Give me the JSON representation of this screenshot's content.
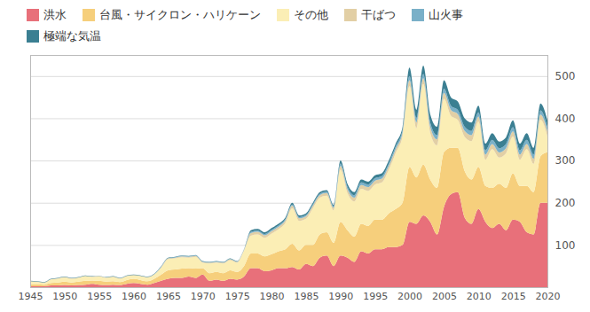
{
  "chart_data": {
    "type": "area",
    "stacked": true,
    "grid": true,
    "legend": "top-left",
    "x": [
      1945,
      1946,
      1947,
      1948,
      1949,
      1950,
      1951,
      1952,
      1953,
      1954,
      1955,
      1956,
      1957,
      1958,
      1959,
      1960,
      1961,
      1962,
      1963,
      1964,
      1965,
      1966,
      1967,
      1968,
      1969,
      1970,
      1971,
      1972,
      1973,
      1974,
      1975,
      1976,
      1977,
      1978,
      1979,
      1980,
      1981,
      1982,
      1983,
      1984,
      1985,
      1986,
      1987,
      1988,
      1989,
      1990,
      1991,
      1992,
      1993,
      1994,
      1995,
      1996,
      1997,
      1998,
      1999,
      2000,
      2001,
      2002,
      2003,
      2004,
      2005,
      2006,
      2007,
      2008,
      2009,
      2010,
      2011,
      2012,
      2013,
      2014,
      2015,
      2016,
      2017,
      2018,
      2019,
      2020
    ],
    "xlim": [
      1945,
      2020
    ],
    "xticks": [
      1945,
      1950,
      1955,
      1960,
      1965,
      1970,
      1975,
      1980,
      1985,
      1990,
      1995,
      2000,
      2005,
      2010,
      2015,
      2020
    ],
    "ylim": [
      0,
      550
    ],
    "yticks": [
      100,
      200,
      300,
      400,
      500
    ],
    "series": [
      {
        "name": "洪水",
        "color": "#e8707a",
        "values": [
          2,
          2,
          2,
          4,
          4,
          5,
          4,
          5,
          6,
          8,
          6,
          5,
          6,
          5,
          8,
          10,
          8,
          6,
          10,
          15,
          20,
          22,
          22,
          25,
          22,
          30,
          15,
          18,
          15,
          20,
          18,
          25,
          45,
          45,
          38,
          40,
          45,
          45,
          48,
          42,
          55,
          50,
          70,
          75,
          50,
          75,
          70,
          60,
          85,
          80,
          90,
          90,
          95,
          95,
          100,
          155,
          150,
          170,
          155,
          125,
          190,
          220,
          225,
          165,
          150,
          185,
          155,
          140,
          150,
          135,
          160,
          155,
          130,
          125,
          200,
          200
        ]
      },
      {
        "name": "台風・サイクロン・ハリケーン",
        "color": "#f6cf7c",
        "values": [
          5,
          5,
          4,
          6,
          7,
          8,
          7,
          8,
          9,
          8,
          9,
          8,
          8,
          7,
          9,
          10,
          9,
          8,
          10,
          15,
          20,
          20,
          22,
          20,
          22,
          15,
          18,
          18,
          18,
          20,
          18,
          25,
          35,
          35,
          35,
          38,
          40,
          45,
          55,
          45,
          45,
          50,
          55,
          55,
          55,
          80,
          65,
          60,
          65,
          65,
          70,
          70,
          80,
          90,
          100,
          130,
          110,
          120,
          100,
          110,
          130,
          110,
          105,
          110,
          105,
          100,
          85,
          95,
          95,
          100,
          110,
          85,
          110,
          100,
          110,
          120
        ]
      },
      {
        "name": "その他",
        "color": "#fbeeb5",
        "values": [
          6,
          5,
          4,
          8,
          9,
          10,
          9,
          9,
          11,
          8,
          10,
          9,
          10,
          8,
          9,
          8,
          9,
          9,
          10,
          16,
          26,
          26,
          27,
          25,
          28,
          13,
          23,
          22,
          23,
          24,
          22,
          36,
          42,
          45,
          44,
          49,
          52,
          62,
          84,
          70,
          62,
          87,
          87,
          87,
          77,
          123,
          88,
          83,
          83,
          83,
          83,
          88,
          103,
          133,
          158,
          191,
          116,
          191,
          111,
          101,
          126,
          76,
          66,
          81,
          91,
          107,
          62,
          92,
          62,
          82,
          87,
          62,
          87,
          67,
          87,
          37
        ]
      },
      {
        "name": "干ばつ",
        "color": "#e2cfa5",
        "values": [
          1,
          1,
          1,
          1,
          1,
          1,
          1,
          1,
          1,
          1,
          1,
          1,
          1,
          1,
          1,
          1,
          1,
          1,
          1,
          2,
          2,
          2,
          2,
          2,
          2,
          2,
          2,
          2,
          2,
          2,
          2,
          2,
          6,
          6,
          6,
          6,
          6,
          6,
          6,
          6,
          6,
          6,
          6,
          6,
          6,
          9,
          9,
          9,
          9,
          9,
          9,
          9,
          9,
          9,
          9,
          14,
          14,
          14,
          14,
          14,
          14,
          14,
          14,
          14,
          14,
          12,
          12,
          12,
          12,
          12,
          12,
          12,
          12,
          12,
          12,
          12
        ]
      },
      {
        "name": "山火事",
        "color": "#7ab0c8",
        "values": [
          0,
          0,
          0,
          0,
          0,
          0,
          0,
          0,
          0,
          0,
          0,
          0,
          0,
          0,
          0,
          0,
          0,
          0,
          0,
          1,
          1,
          1,
          1,
          1,
          1,
          1,
          1,
          1,
          1,
          1,
          1,
          1,
          3,
          3,
          3,
          3,
          3,
          3,
          3,
          3,
          3,
          3,
          3,
          3,
          3,
          6,
          6,
          6,
          6,
          6,
          6,
          6,
          6,
          6,
          6,
          10,
          10,
          10,
          10,
          10,
          10,
          10,
          10,
          10,
          10,
          10,
          10,
          10,
          10,
          10,
          10,
          10,
          10,
          10,
          10,
          10
        ]
      },
      {
        "name": "極端な気温",
        "color": "#3b7f92",
        "values": [
          1,
          1,
          1,
          1,
          1,
          1,
          1,
          1,
          1,
          1,
          1,
          1,
          1,
          1,
          1,
          1,
          1,
          1,
          1,
          1,
          1,
          1,
          1,
          1,
          1,
          1,
          1,
          1,
          1,
          1,
          1,
          1,
          4,
          4,
          4,
          4,
          4,
          4,
          4,
          4,
          4,
          4,
          4,
          4,
          4,
          7,
          7,
          7,
          7,
          7,
          7,
          7,
          7,
          7,
          7,
          20,
          20,
          20,
          20,
          20,
          20,
          20,
          20,
          20,
          20,
          16,
          16,
          16,
          16,
          16,
          16,
          16,
          16,
          16,
          16,
          16
        ]
      }
    ]
  }
}
